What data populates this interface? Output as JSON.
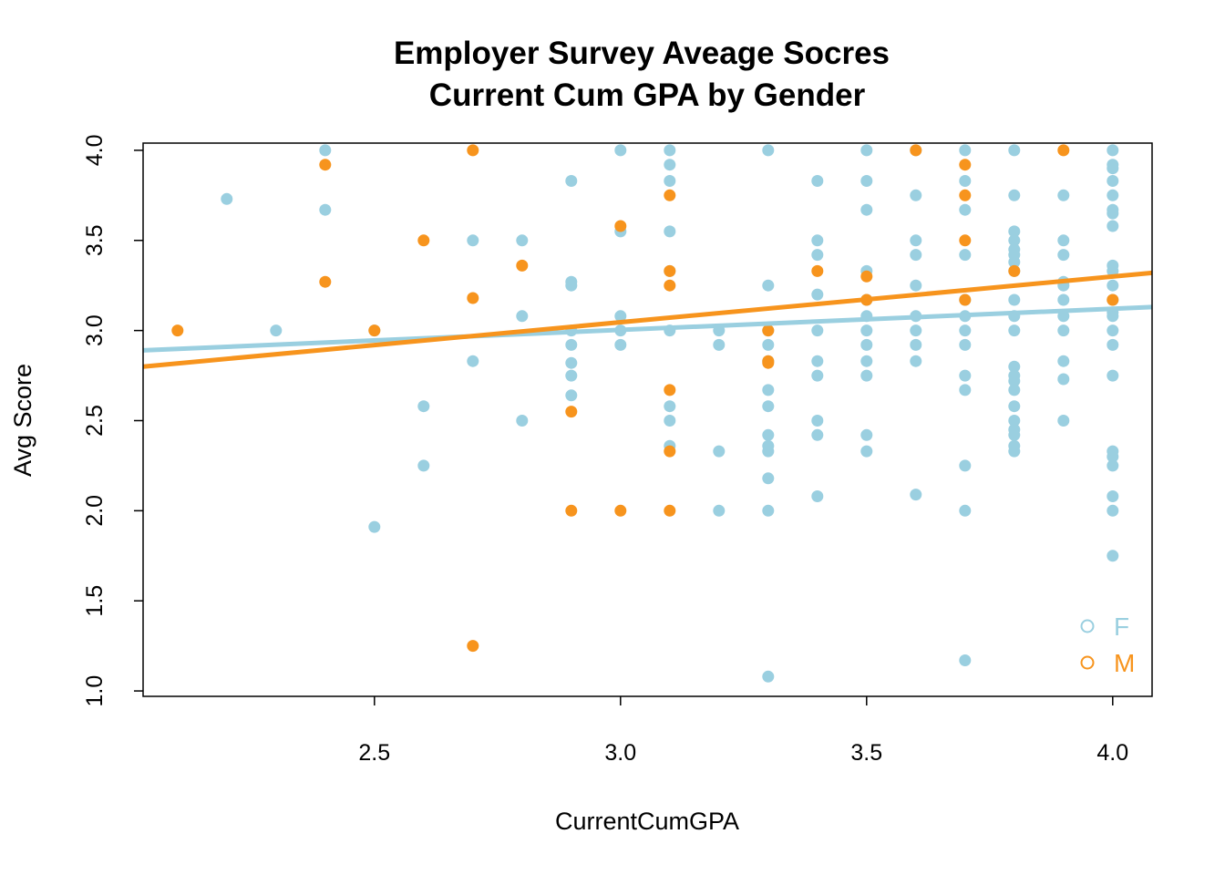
{
  "chart_data": {
    "type": "scatter",
    "title": "Employer Survey Aveage Socres",
    "subtitle": "Current Cum GPA by Gender",
    "xlabel": "CurrentCumGPA",
    "ylabel": "Avg Score",
    "xlim": [
      2.03,
      4.08
    ],
    "ylim": [
      0.97,
      4.04
    ],
    "x_ticks": [
      "2.5",
      "3.0",
      "3.5",
      "4.0"
    ],
    "y_ticks": [
      "1.0",
      "1.5",
      "2.0",
      "2.5",
      "3.0",
      "3.5",
      "4.0"
    ],
    "legend_position": "bottom-right",
    "series": [
      {
        "name": "F",
        "color": "#9ACFE0",
        "trend": {
          "x0": 2.03,
          "y0": 2.89,
          "x1": 4.08,
          "y1": 3.13
        },
        "points": [
          [
            2.2,
            3.73
          ],
          [
            2.3,
            3.0
          ],
          [
            2.4,
            4.0
          ],
          [
            2.4,
            3.67
          ],
          [
            2.5,
            3.0
          ],
          [
            2.5,
            1.91
          ],
          [
            2.6,
            2.58
          ],
          [
            2.6,
            2.25
          ],
          [
            2.7,
            3.5
          ],
          [
            2.7,
            2.83
          ],
          [
            2.8,
            3.5
          ],
          [
            2.8,
            3.08
          ],
          [
            2.8,
            2.5
          ],
          [
            2.9,
            3.83
          ],
          [
            2.9,
            3.27
          ],
          [
            2.9,
            3.25
          ],
          [
            2.9,
            3.0
          ],
          [
            2.9,
            2.92
          ],
          [
            2.9,
            2.82
          ],
          [
            2.9,
            2.75
          ],
          [
            2.9,
            2.64
          ],
          [
            3.0,
            4.0
          ],
          [
            3.0,
            3.55
          ],
          [
            3.0,
            3.08
          ],
          [
            3.0,
            3.0
          ],
          [
            3.0,
            2.92
          ],
          [
            3.1,
            4.0
          ],
          [
            3.1,
            3.92
          ],
          [
            3.1,
            3.83
          ],
          [
            3.1,
            3.55
          ],
          [
            3.1,
            3.33
          ],
          [
            3.1,
            3.0
          ],
          [
            3.1,
            2.58
          ],
          [
            3.1,
            2.5
          ],
          [
            3.1,
            2.36
          ],
          [
            3.2,
            3.0
          ],
          [
            3.2,
            2.92
          ],
          [
            3.2,
            2.33
          ],
          [
            3.2,
            2.0
          ],
          [
            3.3,
            4.0
          ],
          [
            3.3,
            3.25
          ],
          [
            3.3,
            3.0
          ],
          [
            3.3,
            2.92
          ],
          [
            3.3,
            2.83
          ],
          [
            3.3,
            2.67
          ],
          [
            3.3,
            2.58
          ],
          [
            3.3,
            2.42
          ],
          [
            3.3,
            2.36
          ],
          [
            3.3,
            2.33
          ],
          [
            3.3,
            2.18
          ],
          [
            3.3,
            2.0
          ],
          [
            3.3,
            1.08
          ],
          [
            3.4,
            3.83
          ],
          [
            3.4,
            3.5
          ],
          [
            3.4,
            3.42
          ],
          [
            3.4,
            3.2
          ],
          [
            3.4,
            3.0
          ],
          [
            3.4,
            2.83
          ],
          [
            3.4,
            2.75
          ],
          [
            3.4,
            2.5
          ],
          [
            3.4,
            2.42
          ],
          [
            3.4,
            2.08
          ],
          [
            3.5,
            4.0
          ],
          [
            3.5,
            3.83
          ],
          [
            3.5,
            3.67
          ],
          [
            3.5,
            3.33
          ],
          [
            3.5,
            3.17
          ],
          [
            3.5,
            3.08
          ],
          [
            3.5,
            3.0
          ],
          [
            3.5,
            2.92
          ],
          [
            3.5,
            2.83
          ],
          [
            3.5,
            2.75
          ],
          [
            3.5,
            2.42
          ],
          [
            3.5,
            2.33
          ],
          [
            3.6,
            4.0
          ],
          [
            3.6,
            3.75
          ],
          [
            3.6,
            3.5
          ],
          [
            3.6,
            3.42
          ],
          [
            3.6,
            3.25
          ],
          [
            3.6,
            3.08
          ],
          [
            3.6,
            3.0
          ],
          [
            3.6,
            2.92
          ],
          [
            3.6,
            2.83
          ],
          [
            3.6,
            2.09
          ],
          [
            3.7,
            4.0
          ],
          [
            3.7,
            3.83
          ],
          [
            3.7,
            3.67
          ],
          [
            3.7,
            3.42
          ],
          [
            3.7,
            3.17
          ],
          [
            3.7,
            3.08
          ],
          [
            3.7,
            3.0
          ],
          [
            3.7,
            2.92
          ],
          [
            3.7,
            2.75
          ],
          [
            3.7,
            2.67
          ],
          [
            3.7,
            2.25
          ],
          [
            3.7,
            2.0
          ],
          [
            3.7,
            1.17
          ],
          [
            3.8,
            4.0
          ],
          [
            3.8,
            3.75
          ],
          [
            3.8,
            3.55
          ],
          [
            3.8,
            3.5
          ],
          [
            3.8,
            3.45
          ],
          [
            3.8,
            3.42
          ],
          [
            3.8,
            3.38
          ],
          [
            3.8,
            3.33
          ],
          [
            3.8,
            3.17
          ],
          [
            3.8,
            3.08
          ],
          [
            3.8,
            3.0
          ],
          [
            3.8,
            2.8
          ],
          [
            3.8,
            2.75
          ],
          [
            3.8,
            2.72
          ],
          [
            3.8,
            2.67
          ],
          [
            3.8,
            2.58
          ],
          [
            3.8,
            2.5
          ],
          [
            3.8,
            2.45
          ],
          [
            3.8,
            2.42
          ],
          [
            3.8,
            2.36
          ],
          [
            3.8,
            2.33
          ],
          [
            3.9,
            3.75
          ],
          [
            3.9,
            3.5
          ],
          [
            3.9,
            3.42
          ],
          [
            3.9,
            3.27
          ],
          [
            3.9,
            3.25
          ],
          [
            3.9,
            3.17
          ],
          [
            3.9,
            3.08
          ],
          [
            3.9,
            3.0
          ],
          [
            3.9,
            2.83
          ],
          [
            3.9,
            2.73
          ],
          [
            3.9,
            2.5
          ],
          [
            4.0,
            4.0
          ],
          [
            4.0,
            3.92
          ],
          [
            4.0,
            3.9
          ],
          [
            4.0,
            3.83
          ],
          [
            4.0,
            3.75
          ],
          [
            4.0,
            3.67
          ],
          [
            4.0,
            3.65
          ],
          [
            4.0,
            3.58
          ],
          [
            4.0,
            3.36
          ],
          [
            4.0,
            3.33
          ],
          [
            4.0,
            3.25
          ],
          [
            4.0,
            3.17
          ],
          [
            4.0,
            3.1
          ],
          [
            4.0,
            3.08
          ],
          [
            4.0,
            3.0
          ],
          [
            4.0,
            2.92
          ],
          [
            4.0,
            2.75
          ],
          [
            4.0,
            2.33
          ],
          [
            4.0,
            2.3
          ],
          [
            4.0,
            2.25
          ],
          [
            4.0,
            2.08
          ],
          [
            4.0,
            2.0
          ],
          [
            4.0,
            1.75
          ]
        ]
      },
      {
        "name": "M",
        "color": "#F7941D",
        "trend": {
          "x0": 2.03,
          "y0": 2.8,
          "x1": 4.08,
          "y1": 3.32
        },
        "points": [
          [
            2.1,
            3.0
          ],
          [
            2.4,
            3.92
          ],
          [
            2.4,
            3.27
          ],
          [
            2.5,
            3.0
          ],
          [
            2.6,
            3.5
          ],
          [
            2.7,
            4.0
          ],
          [
            2.7,
            3.18
          ],
          [
            2.7,
            1.25
          ],
          [
            2.8,
            3.36
          ],
          [
            2.9,
            2.55
          ],
          [
            2.9,
            2.0
          ],
          [
            3.0,
            3.58
          ],
          [
            3.0,
            2.0
          ],
          [
            3.1,
            3.75
          ],
          [
            3.1,
            3.33
          ],
          [
            3.1,
            3.25
          ],
          [
            3.1,
            2.67
          ],
          [
            3.1,
            2.33
          ],
          [
            3.1,
            2.0
          ],
          [
            3.3,
            3.0
          ],
          [
            3.3,
            2.83
          ],
          [
            3.3,
            2.82
          ],
          [
            3.4,
            3.33
          ],
          [
            3.5,
            3.3
          ],
          [
            3.5,
            3.17
          ],
          [
            3.6,
            4.0
          ],
          [
            3.7,
            3.92
          ],
          [
            3.7,
            3.75
          ],
          [
            3.7,
            3.5
          ],
          [
            3.7,
            3.17
          ],
          [
            3.8,
            3.33
          ],
          [
            3.9,
            4.0
          ],
          [
            4.0,
            3.17
          ]
        ]
      }
    ]
  }
}
